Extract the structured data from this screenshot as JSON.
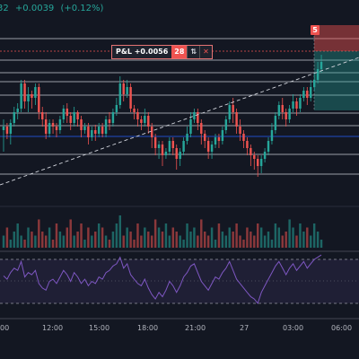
{
  "header": {
    "price_fragment": "32",
    "change": "+0.0039",
    "change_pct": "(+0.12%)"
  },
  "position": {
    "pnl_label": "P&L +0.0056",
    "quantity": "28",
    "reverse_icon": "reverse-arrows-icon",
    "close_icon": "close-icon",
    "order_badge": "5"
  },
  "colors": {
    "background": "#131722",
    "up": "#26a69a",
    "down": "#ef5350",
    "rsi_line": "#7e57c2",
    "stop_zone": "#ef5350",
    "target_zone": "#26a69a"
  },
  "time_axis": {
    "labels": [
      "00",
      "12:00",
      "15:00",
      "18:00",
      "21:00",
      "27",
      "03:00",
      "06:00"
    ]
  },
  "chart_data": {
    "type": "candlestick",
    "panes": [
      "price",
      "volume",
      "rsi"
    ],
    "price_horizontal_levels": 9,
    "trend_line": "dashed, rising",
    "candles": [
      [
        60,
        62,
        48,
        66
      ],
      [
        62,
        58,
        55,
        64
      ],
      [
        58,
        64,
        52,
        66
      ],
      [
        64,
        70,
        62,
        73
      ],
      [
        70,
        72,
        66,
        75
      ],
      [
        72,
        86,
        70,
        88
      ],
      [
        86,
        76,
        72,
        88
      ],
      [
        76,
        80,
        70,
        84
      ],
      [
        80,
        78,
        72,
        82
      ],
      [
        78,
        84,
        74,
        86
      ],
      [
        84,
        70,
        66,
        86
      ],
      [
        70,
        66,
        62,
        73
      ],
      [
        66,
        58,
        55,
        70
      ],
      [
        58,
        64,
        56,
        66
      ],
      [
        64,
        62,
        58,
        66
      ],
      [
        62,
        60,
        56,
        64
      ],
      [
        60,
        66,
        58,
        68
      ],
      [
        66,
        72,
        64,
        74
      ],
      [
        72,
        68,
        64,
        75
      ],
      [
        68,
        64,
        60,
        70
      ],
      [
        64,
        70,
        62,
        73
      ],
      [
        70,
        66,
        62,
        71
      ],
      [
        66,
        60,
        56,
        68
      ],
      [
        60,
        62,
        58,
        64
      ],
      [
        62,
        56,
        52,
        64
      ],
      [
        56,
        60,
        54,
        62
      ],
      [
        60,
        58,
        54,
        63
      ],
      [
        58,
        62,
        56,
        64
      ],
      [
        62,
        58,
        56,
        64
      ],
      [
        58,
        66,
        56,
        68
      ],
      [
        66,
        64,
        60,
        70
      ],
      [
        64,
        70,
        62,
        72
      ],
      [
        70,
        74,
        68,
        78
      ],
      [
        74,
        86,
        72,
        90
      ],
      [
        86,
        80,
        76,
        88
      ],
      [
        80,
        84,
        78,
        88
      ],
      [
        84,
        72,
        70,
        86
      ],
      [
        72,
        70,
        66,
        74
      ],
      [
        70,
        66,
        62,
        72
      ],
      [
        66,
        64,
        60,
        68
      ],
      [
        64,
        68,
        62,
        72
      ],
      [
        68,
        62,
        58,
        70
      ],
      [
        62,
        56,
        50,
        64
      ],
      [
        56,
        50,
        46,
        58
      ],
      [
        50,
        52,
        44,
        54
      ],
      [
        52,
        46,
        40,
        54
      ],
      [
        46,
        48,
        44,
        50
      ],
      [
        48,
        54,
        46,
        56
      ],
      [
        54,
        50,
        46,
        56
      ],
      [
        50,
        44,
        38,
        52
      ],
      [
        44,
        48,
        40,
        50
      ],
      [
        48,
        54,
        46,
        56
      ],
      [
        54,
        58,
        52,
        62
      ],
      [
        58,
        66,
        56,
        70
      ],
      [
        66,
        70,
        64,
        72
      ],
      [
        70,
        64,
        60,
        72
      ],
      [
        64,
        58,
        52,
        66
      ],
      [
        58,
        54,
        50,
        60
      ],
      [
        54,
        48,
        44,
        56
      ],
      [
        48,
        52,
        44,
        54
      ],
      [
        52,
        56,
        50,
        58
      ],
      [
        56,
        54,
        50,
        58
      ],
      [
        54,
        60,
        52,
        62
      ],
      [
        60,
        66,
        58,
        68
      ],
      [
        66,
        74,
        64,
        76
      ],
      [
        74,
        70,
        64,
        78
      ],
      [
        70,
        62,
        58,
        72
      ],
      [
        62,
        58,
        54,
        66
      ],
      [
        58,
        54,
        50,
        60
      ],
      [
        54,
        50,
        46,
        56
      ],
      [
        50,
        46,
        40,
        52
      ],
      [
        46,
        44,
        38,
        48
      ],
      [
        44,
        40,
        34,
        46
      ],
      [
        40,
        44,
        36,
        46
      ],
      [
        44,
        48,
        42,
        50
      ],
      [
        48,
        54,
        46,
        56
      ],
      [
        54,
        60,
        52,
        64
      ],
      [
        60,
        68,
        58,
        70
      ],
      [
        68,
        74,
        66,
        76
      ],
      [
        74,
        70,
        66,
        78
      ],
      [
        70,
        66,
        62,
        72
      ],
      [
        66,
        72,
        64,
        74
      ],
      [
        72,
        76,
        70,
        80
      ],
      [
        76,
        72,
        68,
        78
      ],
      [
        72,
        78,
        70,
        80
      ],
      [
        78,
        82,
        76,
        84
      ],
      [
        82,
        78,
        74,
        84
      ],
      [
        78,
        84,
        76,
        88
      ],
      [
        84,
        88,
        82,
        92
      ],
      [
        88,
        94,
        86,
        98
      ],
      [
        94,
        98,
        92,
        102
      ]
    ],
    "volume": [
      3,
      5,
      2,
      4,
      6,
      3,
      2,
      5,
      4,
      3,
      7,
      4,
      3,
      5,
      2,
      6,
      4,
      3,
      5,
      7,
      3,
      4,
      6,
      2,
      5,
      3,
      4,
      6,
      5,
      3,
      2,
      4,
      6,
      8,
      3,
      5,
      4,
      2,
      6,
      3,
      5,
      4,
      3,
      7,
      5,
      4,
      6,
      3,
      5,
      4,
      3,
      2,
      6,
      4,
      5,
      3,
      7,
      4,
      3,
      5,
      2,
      6,
      4,
      3,
      5,
      4,
      6,
      3,
      2,
      5,
      4,
      3,
      6,
      5,
      3,
      4,
      2,
      6,
      5,
      3,
      4,
      7,
      5,
      3,
      6,
      4,
      5,
      3,
      6,
      4,
      2
    ],
    "rsi": [
      55,
      52,
      58,
      62,
      60,
      68,
      54,
      58,
      56,
      60,
      48,
      44,
      42,
      50,
      52,
      48,
      54,
      60,
      56,
      50,
      58,
      54,
      48,
      52,
      46,
      50,
      48,
      54,
      52,
      58,
      60,
      64,
      66,
      72,
      62,
      66,
      56,
      52,
      48,
      46,
      52,
      44,
      38,
      34,
      40,
      36,
      42,
      50,
      46,
      40,
      46,
      54,
      58,
      64,
      66,
      58,
      50,
      46,
      42,
      48,
      54,
      52,
      58,
      62,
      68,
      60,
      52,
      48,
      44,
      40,
      36,
      34,
      30,
      40,
      46,
      52,
      58,
      64,
      68,
      62,
      56,
      62,
      66,
      60,
      64,
      68,
      62,
      66,
      70,
      72,
      74
    ]
  }
}
